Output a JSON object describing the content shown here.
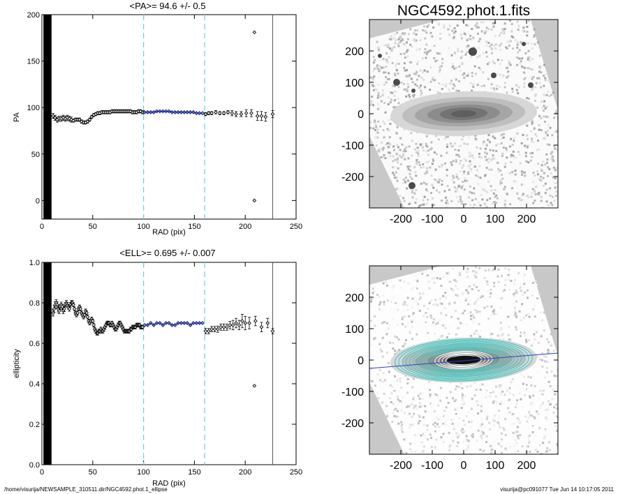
{
  "footer": {
    "path": "/home/visurija/NEWSAMPLE_310511.dir/NGC4592.phot.1_ellipse",
    "user_stamp": "visurija@pc091077  Tue Jun 14 10:17:05 2011"
  },
  "chart_data": [
    {
      "id": "pa",
      "type": "scatter",
      "title": "<PA>=  94.6 +/-   0.5",
      "xlabel": "RAD (pix)",
      "ylabel": "PA",
      "xlim": [
        0,
        250
      ],
      "ylim": [
        -20,
        200
      ],
      "xticks": [
        0,
        50,
        100,
        150,
        200,
        250
      ],
      "yticks": [
        0,
        50,
        100,
        150,
        200
      ],
      "fit_range": [
        100,
        160
      ],
      "rmax": 227,
      "series": [
        {
          "style": "points",
          "x": [
            11,
            13,
            15,
            17,
            19,
            21,
            23,
            25,
            27,
            29,
            31,
            33,
            35,
            37,
            39,
            41,
            43,
            45,
            47,
            49,
            51,
            53,
            55,
            57,
            59,
            61,
            63,
            65,
            67,
            69,
            71,
            73,
            75,
            77,
            79,
            81,
            83,
            85,
            87,
            89,
            91,
            93,
            95,
            97,
            99,
            161,
            164,
            167,
            171,
            175,
            179,
            183,
            187,
            191,
            196,
            201,
            206,
            212,
            216,
            220,
            227
          ],
          "y": [
            91,
            89,
            87,
            88,
            88,
            89,
            88,
            89,
            88,
            87,
            86,
            87,
            87,
            87,
            85,
            84,
            84,
            85,
            87,
            90,
            92,
            93,
            94,
            94,
            95,
            95,
            95,
            95,
            95,
            96,
            96,
            96,
            96,
            96,
            96,
            96,
            96,
            96,
            96,
            95,
            95,
            95,
            96,
            96,
            95,
            93,
            94,
            94,
            95,
            94,
            94,
            95,
            94,
            93,
            93,
            94,
            94,
            91,
            91,
            90,
            93
          ],
          "err": [
            2,
            2,
            2,
            2,
            2,
            2,
            2,
            2,
            2,
            2,
            1,
            1,
            1,
            1,
            1,
            1,
            1,
            1,
            1,
            1,
            1,
            1,
            1,
            1,
            1,
            1,
            1,
            1,
            1,
            1,
            1,
            1,
            1,
            1,
            1,
            1,
            1,
            1,
            1,
            1,
            1,
            1,
            1,
            1,
            1,
            1,
            1,
            1,
            1,
            1,
            1,
            1,
            2,
            2,
            2,
            3,
            3,
            4,
            4,
            4,
            3
          ]
        },
        {
          "style": "fit",
          "color": "#1e2a8c",
          "x": [
            101,
            104,
            107,
            110,
            113,
            116,
            119,
            122,
            125,
            128,
            131,
            134,
            137,
            140,
            143,
            146,
            149,
            152,
            155,
            158
          ],
          "y": [
            95,
            95,
            95,
            95,
            96,
            96,
            96,
            96,
            96,
            95,
            95,
            95,
            95,
            95,
            95,
            95,
            95,
            94,
            94,
            94
          ]
        },
        {
          "style": "outliers",
          "x": [
            209,
            209
          ],
          "y": [
            181,
            0
          ]
        }
      ]
    },
    {
      "id": "ell",
      "type": "scatter",
      "title": "<ELL>= 0.695 +/-  0.007",
      "xlabel": "RAD (pix)",
      "ylabel": "ellipticity",
      "xlim": [
        0,
        250
      ],
      "ylim": [
        0.0,
        1.0
      ],
      "xticks": [
        0,
        50,
        100,
        150,
        200,
        250
      ],
      "yticks": [
        "0.0",
        "0.2",
        "0.4",
        "0.6",
        "0.8",
        "1.0"
      ],
      "fit_range": [
        100,
        160
      ],
      "rmax": 227,
      "series": [
        {
          "style": "points",
          "x": [
            11,
            12,
            13,
            14,
            15,
            16,
            17,
            18,
            19,
            20,
            21,
            22,
            23,
            24,
            25,
            26,
            27,
            28,
            29,
            30,
            31,
            32,
            33,
            34,
            35,
            36,
            37,
            38,
            39,
            40,
            41,
            42,
            43,
            44,
            45,
            46,
            47,
            48,
            49,
            50,
            51,
            52,
            53,
            54,
            55,
            56,
            57,
            58,
            59,
            60,
            61,
            62,
            63,
            64,
            65,
            66,
            67,
            68,
            69,
            70,
            71,
            72,
            73,
            74,
            75,
            76,
            77,
            78,
            79,
            80,
            81,
            82,
            83,
            84,
            85,
            86,
            87,
            88,
            89,
            90,
            91,
            92,
            93,
            94,
            95,
            96,
            97,
            98,
            99
          ],
          "y": [
            0.75,
            0.77,
            0.79,
            0.8,
            0.79,
            0.77,
            0.76,
            0.78,
            0.79,
            0.78,
            0.76,
            0.77,
            0.79,
            0.8,
            0.79,
            0.78,
            0.77,
            0.79,
            0.8,
            0.8,
            0.79,
            0.77,
            0.75,
            0.74,
            0.75,
            0.77,
            0.78,
            0.77,
            0.75,
            0.74,
            0.73,
            0.74,
            0.76,
            0.75,
            0.73,
            0.71,
            0.7,
            0.71,
            0.72,
            0.71,
            0.69,
            0.67,
            0.66,
            0.65,
            0.65,
            0.66,
            0.66,
            0.67,
            0.66,
            0.66,
            0.67,
            0.68,
            0.69,
            0.7,
            0.7,
            0.7,
            0.69,
            0.69,
            0.7,
            0.69,
            0.68,
            0.67,
            0.67,
            0.68,
            0.69,
            0.7,
            0.7,
            0.69,
            0.68,
            0.67,
            0.66,
            0.66,
            0.66,
            0.66,
            0.66,
            0.66,
            0.67,
            0.67,
            0.68,
            0.68,
            0.68,
            0.68,
            0.69,
            0.69,
            0.69,
            0.69,
            0.68,
            0.68,
            0.68
          ],
          "err": [
            0.012,
            0.012,
            0.012,
            0.012,
            0.012,
            0.012,
            0.01,
            0.01,
            0.01,
            0.01,
            0.01,
            0.01,
            0.008,
            0.008,
            0.008,
            0.008,
            0.008,
            0.008,
            0.008,
            0.008,
            0.006,
            0.006,
            0.006,
            0.006,
            0.006,
            0.006,
            0.006,
            0.006,
            0.006,
            0.006,
            0.006,
            0.006,
            0.006,
            0.006,
            0.006,
            0.006,
            0.006,
            0.006,
            0.006,
            0.006,
            0.006,
            0.006,
            0.006,
            0.006,
            0.006,
            0.006,
            0.006,
            0.006,
            0.006,
            0.006,
            0.006,
            0.006,
            0.006,
            0.006,
            0.006,
            0.006,
            0.006,
            0.006,
            0.006,
            0.006,
            0.006,
            0.006,
            0.006,
            0.006,
            0.006,
            0.006,
            0.006,
            0.006,
            0.006,
            0.006,
            0.006,
            0.006,
            0.006,
            0.006,
            0.006,
            0.006,
            0.006,
            0.006,
            0.006,
            0.006,
            0.006,
            0.006,
            0.006,
            0.006,
            0.006,
            0.006,
            0.006,
            0.006,
            0.006
          ]
        },
        {
          "style": "fit",
          "color": "#1e2a8c",
          "x": [
            101,
            104,
            107,
            110,
            113,
            116,
            119,
            122,
            125,
            128,
            131,
            134,
            137,
            140,
            143,
            146,
            149,
            152,
            155,
            158
          ],
          "y": [
            0.69,
            0.69,
            0.7,
            0.69,
            0.7,
            0.7,
            0.69,
            0.7,
            0.7,
            0.69,
            0.69,
            0.7,
            0.7,
            0.7,
            0.7,
            0.69,
            0.7,
            0.7,
            0.7,
            0.7
          ]
        },
        {
          "style": "points",
          "x": [
            161,
            164,
            167,
            170,
            173,
            176,
            179,
            182,
            185,
            188,
            191,
            194,
            197,
            200,
            204,
            210,
            216,
            222,
            227
          ],
          "y": [
            0.66,
            0.66,
            0.67,
            0.67,
            0.67,
            0.68,
            0.68,
            0.68,
            0.69,
            0.69,
            0.7,
            0.69,
            0.71,
            0.7,
            0.7,
            0.71,
            0.68,
            0.7,
            0.66
          ],
          "err": [
            0.01,
            0.01,
            0.01,
            0.01,
            0.012,
            0.012,
            0.012,
            0.012,
            0.015,
            0.02,
            0.02,
            0.02,
            0.03,
            0.03,
            0.025,
            0.02,
            0.02,
            0.02,
            0.01
          ]
        },
        {
          "style": "outliers",
          "x": [
            209
          ],
          "y": [
            0.39
          ]
        }
      ]
    },
    {
      "id": "img1",
      "type": "heatmap",
      "title": "NGC4592.phot.1.fits",
      "xlim": [
        -300,
        300
      ],
      "ylim": [
        -300,
        300
      ],
      "xticks": [
        -200,
        -100,
        0,
        100,
        200
      ],
      "yticks": [
        200,
        100,
        0,
        -100,
        -200
      ],
      "colormap": "gray",
      "background": "#c8c8c8"
    },
    {
      "id": "img2",
      "type": "heatmap",
      "xlim": [
        -300,
        300
      ],
      "ylim": [
        -300,
        300
      ],
      "xticks": [
        -200,
        -100,
        0,
        100,
        200
      ],
      "yticks": [
        200,
        100,
        0,
        -100,
        -200
      ],
      "colormap": "gray",
      "background": "#c8c8c8",
      "ellipse_color": "#3cc8c0",
      "axis_line_color": "#3040c0",
      "pa_deg": 94.6,
      "ellipticity": 0.695
    }
  ]
}
